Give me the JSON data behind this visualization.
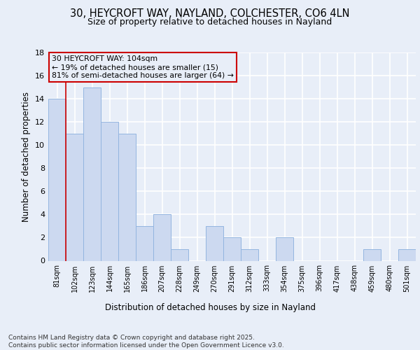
{
  "title1": "30, HEYCROFT WAY, NAYLAND, COLCHESTER, CO6 4LN",
  "title2": "Size of property relative to detached houses in Nayland",
  "xlabel": "Distribution of detached houses by size in Nayland",
  "ylabel": "Number of detached properties",
  "bar_labels": [
    "81sqm",
    "102sqm",
    "123sqm",
    "144sqm",
    "165sqm",
    "186sqm",
    "207sqm",
    "228sqm",
    "249sqm",
    "270sqm",
    "291sqm",
    "312sqm",
    "333sqm",
    "354sqm",
    "375sqm",
    "396sqm",
    "417sqm",
    "438sqm",
    "459sqm",
    "480sqm",
    "501sqm"
  ],
  "bar_values": [
    14,
    11,
    15,
    12,
    11,
    3,
    4,
    1,
    0,
    3,
    2,
    1,
    0,
    2,
    0,
    0,
    0,
    0,
    1,
    0,
    1
  ],
  "bar_color": "#ccd9f0",
  "bar_edgecolor": "#93b5e0",
  "vline_x": 1,
  "vline_color": "#cc0000",
  "annotation_text": "30 HEYCROFT WAY: 104sqm\n← 19% of detached houses are smaller (15)\n81% of semi-detached houses are larger (64) →",
  "annotation_box_edgecolor": "#cc0000",
  "footer_text": "Contains HM Land Registry data © Crown copyright and database right 2025.\nContains public sector information licensed under the Open Government Licence v3.0.",
  "background_color": "#e8eef8",
  "plot_bg_color": "#e8eef8",
  "ylim": [
    0,
    18
  ],
  "yticks": [
    0,
    2,
    4,
    6,
    8,
    10,
    12,
    14,
    16,
    18
  ]
}
